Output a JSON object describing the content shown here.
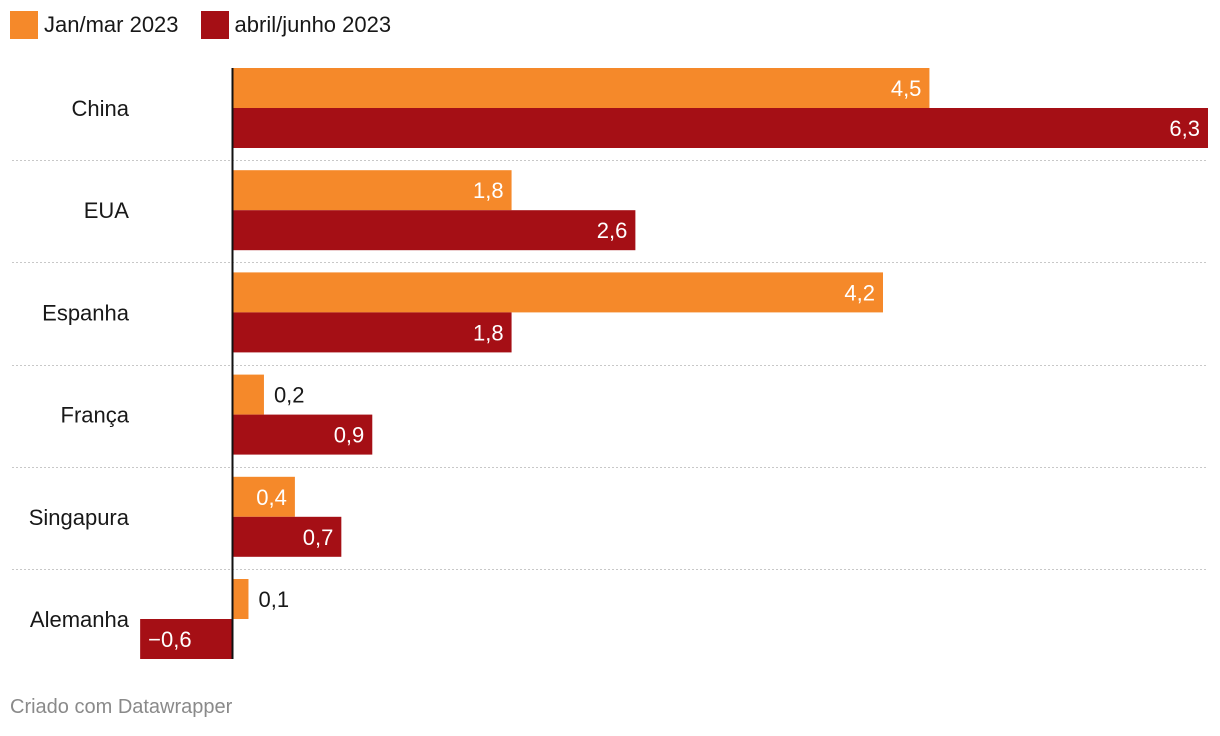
{
  "chart_data": {
    "type": "bar",
    "orientation": "horizontal",
    "categories": [
      "China",
      "EUA",
      "Espanha",
      "França",
      "Singapura",
      "Alemanha"
    ],
    "series": [
      {
        "name": "Jan/mar 2023",
        "color": "#f5892a",
        "values": [
          4.5,
          1.8,
          4.2,
          0.2,
          0.4,
          0.1
        ],
        "labels": [
          "4,5",
          "1,8",
          "4,2",
          "0,2",
          "0,4",
          "0,1"
        ]
      },
      {
        "name": "abril/junho 2023",
        "color": "#a50f15",
        "values": [
          6.3,
          2.6,
          1.8,
          0.9,
          0.7,
          -0.6
        ],
        "labels": [
          "6,3",
          "2,6",
          "1,8",
          "0,9",
          "0,7",
          "−0,6"
        ]
      }
    ],
    "xlim": [
      -0.6,
      6.3
    ],
    "grid": false,
    "legend": "top-left"
  },
  "footer": {
    "credit": "Criado com Datawrapper"
  }
}
